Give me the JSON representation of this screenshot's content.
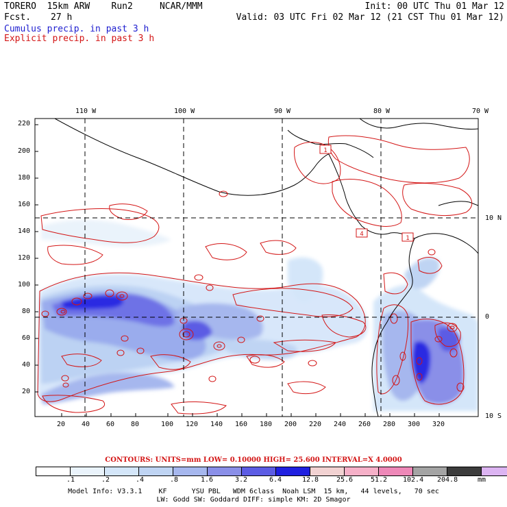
{
  "header": {
    "title": "TORERO  15km ARW    Run2     NCAR/MMM",
    "init": "Init: 00 UTC Thu 01 Mar 12",
    "fcst_label": "Fcst.",
    "fcst_value": "27 h",
    "valid": "Valid: 03 UTC Fri 02 Mar 12 (21 CST Thu 01 Mar 12)",
    "cumulus_label": "Cumulus precip. in past 3 h",
    "explicit_label": "Explicit precip. in past 3 h"
  },
  "map": {
    "lon_labels": [
      "110 W",
      "100 W",
      "90 W",
      "80 W",
      "70 W"
    ],
    "lat_labels": [
      "10 N",
      "0",
      "10 S"
    ],
    "y_ticks": [
      "220",
      "200",
      "180",
      "160",
      "140",
      "120",
      "100",
      "80",
      "60",
      "40",
      "20"
    ],
    "x_ticks": [
      "20",
      "40",
      "60",
      "80",
      "100",
      "120",
      "140",
      "160",
      "180",
      "200",
      "220",
      "240",
      "260",
      "280",
      "300",
      "320"
    ],
    "box_labels": [
      "1",
      "4",
      "1"
    ]
  },
  "contours_line": "CONTOURS:  UNITS=mm  LOW= 0.10000      HIGH=  25.600      INTERVAL=X  4.0000",
  "colorbar": {
    "labels": [
      ".1",
      ".2",
      ".4",
      ".8",
      "1.6",
      "3.2",
      "6.4",
      "12.8",
      "25.6",
      "51.2",
      "102.4",
      "204.8"
    ],
    "units": "mm",
    "colors": [
      "#ffffff",
      "#eaf3fb",
      "#d4e6f9",
      "#bfd4f3",
      "#a6b7ee",
      "#8a8fe8",
      "#5c5ce4",
      "#2020e0",
      "#f2d2d2",
      "#f6b0c8",
      "#ee88b8",
      "#a4a4a4",
      "#3c3c3c",
      "#dcb4f2"
    ]
  },
  "model_info": {
    "line1": "Model Info: V3.3.1    KF      YSU PBL   WDM 6class  Noah LSM  15 km,   44 levels,   70 sec",
    "line2": "LW: Godd SW: Goddard DIFF: simple KM: 2D Smagor"
  }
}
